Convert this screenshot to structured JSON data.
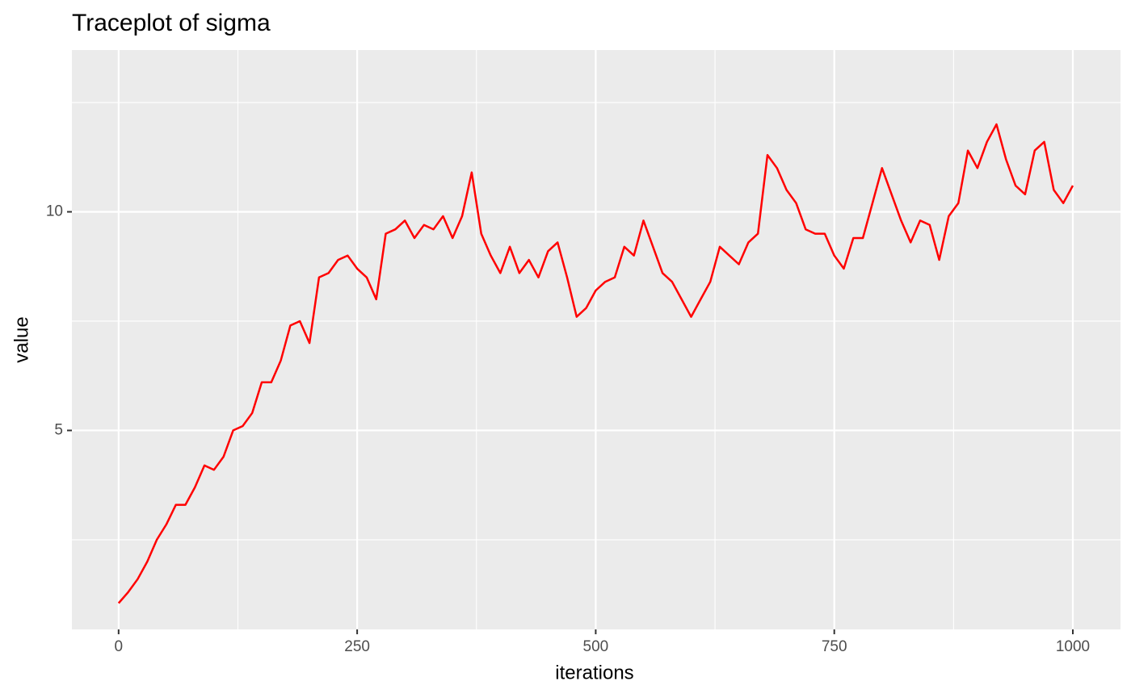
{
  "chart_data": {
    "type": "line",
    "title": "Traceplot of sigma",
    "x_label": "iterations",
    "y_label": "value",
    "x": [
      0,
      10,
      20,
      30,
      40,
      50,
      60,
      70,
      80,
      90,
      100,
      110,
      120,
      130,
      140,
      150,
      160,
      170,
      180,
      190,
      200,
      210,
      220,
      230,
      240,
      250,
      260,
      270,
      280,
      290,
      300,
      310,
      320,
      330,
      340,
      350,
      360,
      370,
      380,
      390,
      400,
      410,
      420,
      430,
      440,
      450,
      460,
      470,
      480,
      490,
      500,
      510,
      520,
      530,
      540,
      550,
      560,
      570,
      580,
      590,
      600,
      610,
      620,
      630,
      640,
      650,
      660,
      670,
      680,
      690,
      700,
      710,
      720,
      730,
      740,
      750,
      760,
      770,
      780,
      790,
      800,
      810,
      820,
      830,
      840,
      850,
      860,
      870,
      880,
      890,
      900,
      910,
      920,
      930,
      940,
      950,
      960,
      970,
      980,
      990,
      1000
    ],
    "series": [
      {
        "name": "sigma",
        "color": "#ff0000",
        "values": [
          1.05,
          1.3,
          1.6,
          2.0,
          2.5,
          2.85,
          3.3,
          3.3,
          3.7,
          4.2,
          4.1,
          4.4,
          5.0,
          5.1,
          5.4,
          6.1,
          6.1,
          6.6,
          7.4,
          7.5,
          7.0,
          8.5,
          8.6,
          8.9,
          9.0,
          8.7,
          8.5,
          8.0,
          9.5,
          9.6,
          9.8,
          9.4,
          9.7,
          9.6,
          9.9,
          9.4,
          9.9,
          10.9,
          9.5,
          9.0,
          8.6,
          9.2,
          8.6,
          8.9,
          8.5,
          9.1,
          9.3,
          8.5,
          7.6,
          7.8,
          8.2,
          8.4,
          8.5,
          9.2,
          9.0,
          9.8,
          9.2,
          8.6,
          8.4,
          8.0,
          7.6,
          8.0,
          8.4,
          9.2,
          9.0,
          8.8,
          9.3,
          9.5,
          11.3,
          11.0,
          10.5,
          10.2,
          9.6,
          9.5,
          9.5,
          9.0,
          8.7,
          9.4,
          9.4,
          10.2,
          11.0,
          10.4,
          9.8,
          9.3,
          9.8,
          9.7,
          8.9,
          9.9,
          10.2,
          11.4,
          11.0,
          11.6,
          12.0,
          11.2,
          10.6,
          10.4,
          11.4,
          11.6,
          10.5,
          10.2,
          10.6
        ]
      }
    ],
    "xlim": [
      -48.95,
      1049.95
    ],
    "ylim": [
      0.45,
      13.7
    ],
    "xticks": [
      0,
      250,
      500,
      750,
      1000
    ],
    "yticks": [
      5,
      10
    ],
    "x_minor_ticks": [
      125,
      375,
      625,
      875
    ],
    "y_minor_ticks": [
      2.5,
      7.5,
      12.5
    ],
    "grid": true,
    "panel_color": "#ebebeb"
  }
}
